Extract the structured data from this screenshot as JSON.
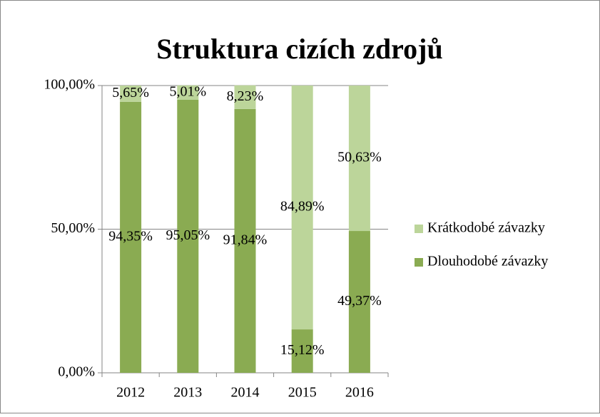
{
  "chart_data": {
    "type": "bar",
    "stacked": true,
    "title": "Struktura cizích zdrojů",
    "categories": [
      "2012",
      "2013",
      "2014",
      "2015",
      "2016"
    ],
    "series": [
      {
        "name": "Dlouhodobé závazky",
        "color": "#8aab52",
        "values": [
          94.35,
          95.05,
          91.84,
          15.12,
          49.37
        ],
        "value_labels": [
          "94,35%",
          "95,05%",
          "91,84%",
          "15,12%",
          "49,37%"
        ]
      },
      {
        "name": "Krátkodobé závazky",
        "color": "#bcd59a",
        "values": [
          5.65,
          5.01,
          8.23,
          84.89,
          50.63
        ],
        "value_labels": [
          "5,65%",
          "5,01%",
          "8,23%",
          "84,89%",
          "50,63%"
        ]
      }
    ],
    "ylim": [
      0,
      100
    ],
    "yticks": [
      {
        "value": 0,
        "label": "0,00%"
      },
      {
        "value": 50,
        "label": "50,00%"
      },
      {
        "value": 100,
        "label": "100,00%"
      }
    ],
    "grid": true,
    "legend": "right"
  }
}
